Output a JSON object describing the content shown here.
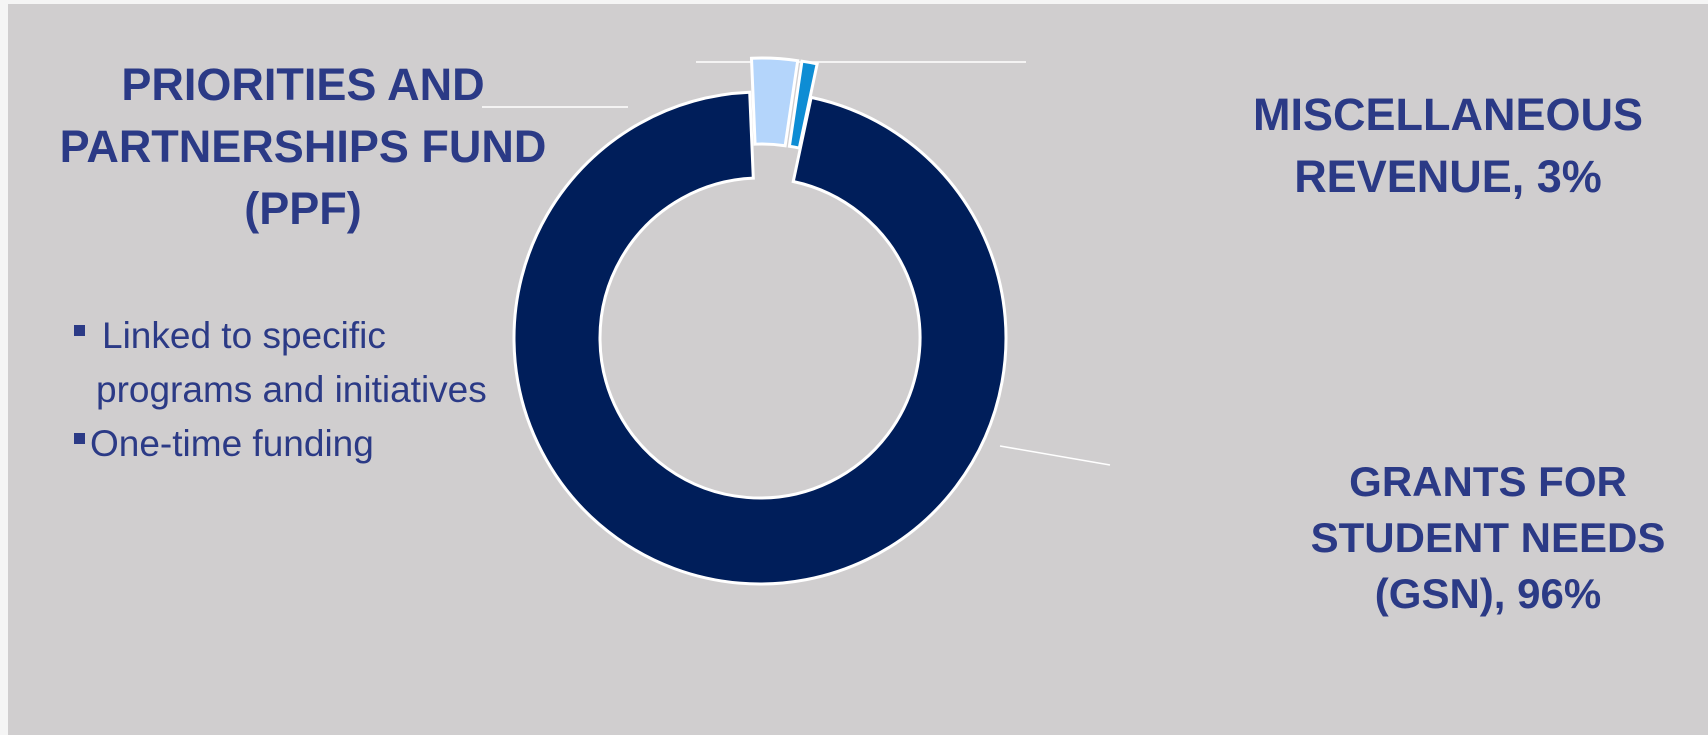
{
  "colors": {
    "background": "#d0cecf",
    "label_text": "#2b3a86",
    "gsn": "#001e5a",
    "misc": "#b4d5fb",
    "ppf": "#0e8dd4",
    "leader_line": "#ffffff"
  },
  "labels": {
    "ppf": {
      "lines": [
        "PRIORITIES AND",
        "PARTNERSHIPS FUND",
        "(PPF)"
      ]
    },
    "misc": {
      "lines": [
        "MISCELLANEOUS",
        "REVENUE, 3%"
      ]
    },
    "gsn": {
      "lines": [
        "GRANTS FOR",
        "STUDENT NEEDS",
        "(GSN), 96%"
      ]
    }
  },
  "bullets": [
    {
      "lines": [
        "Linked to specific",
        "programs and initiatives"
      ]
    },
    {
      "lines": [
        "One-time funding"
      ]
    }
  ],
  "chart_data": {
    "type": "pie",
    "style": "doughnut",
    "title": "",
    "labels": [
      "Grants for Student Needs (GSN)",
      "Miscellaneous Revenue",
      "Priorities and Partnerships Fund (PPF)"
    ],
    "values": [
      96,
      3,
      1
    ],
    "unit": "%",
    "exploded": [
      false,
      true,
      true
    ],
    "legend": "none"
  }
}
